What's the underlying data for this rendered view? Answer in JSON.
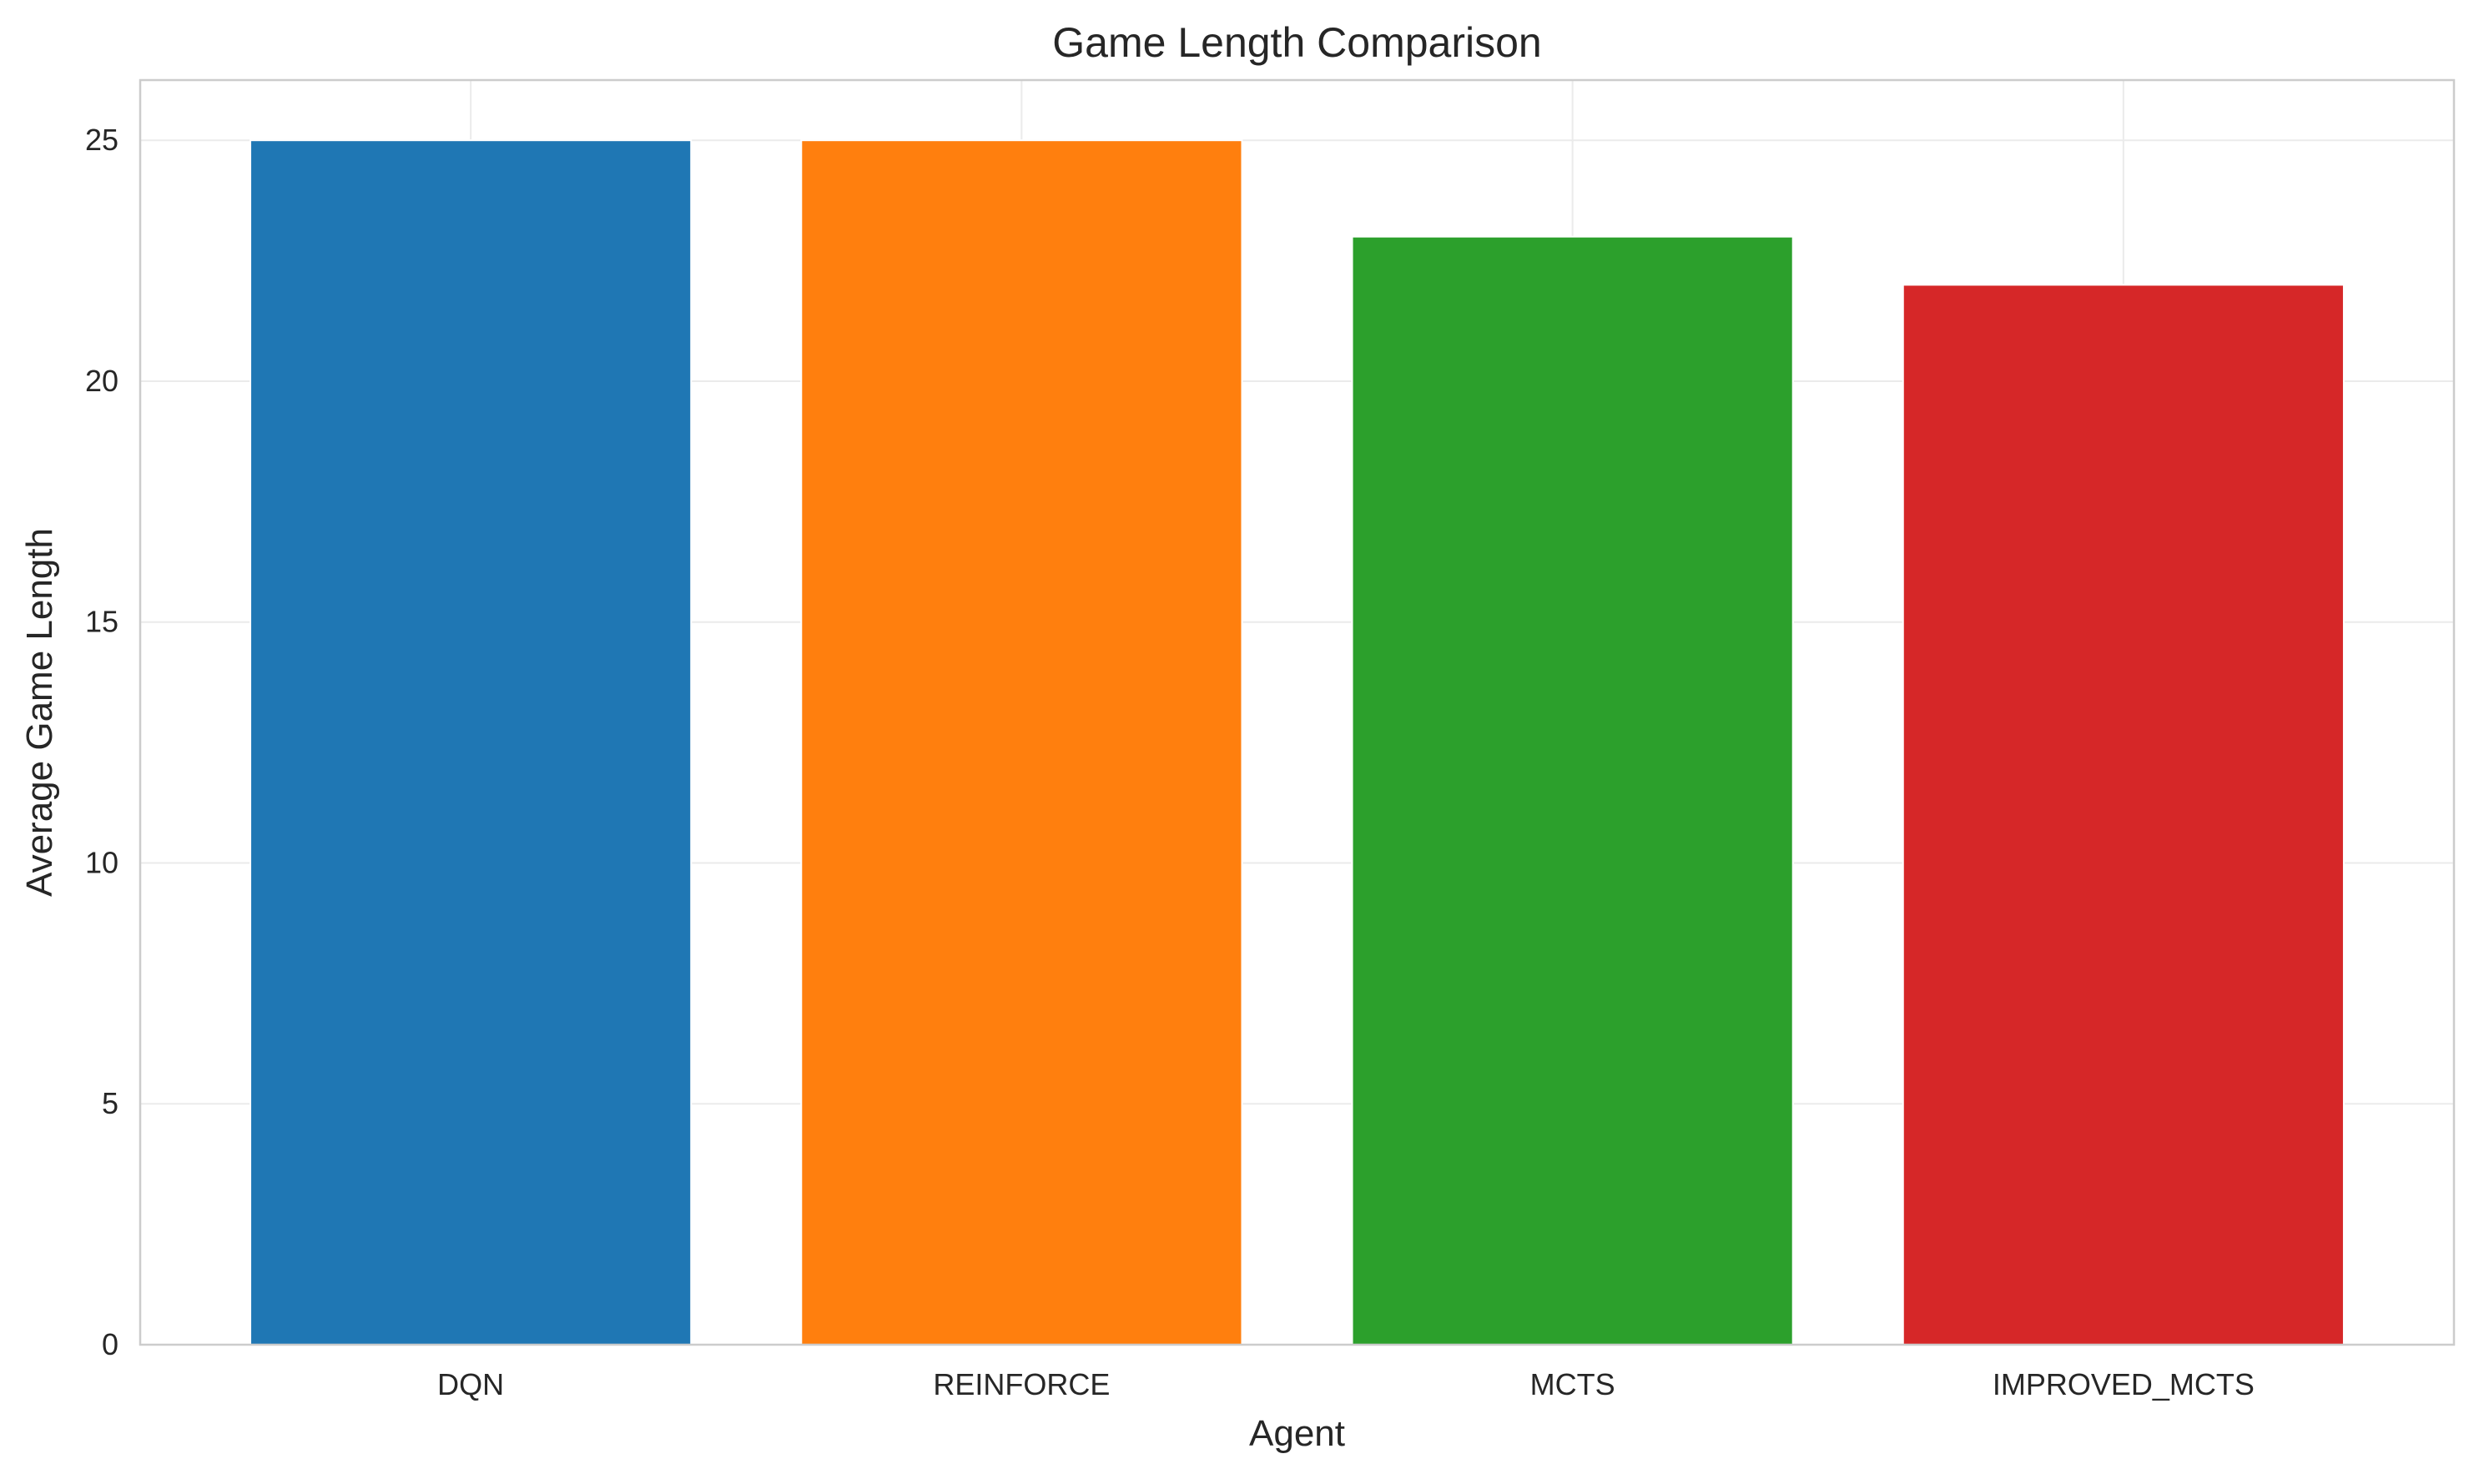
{
  "chart_data": {
    "type": "bar",
    "title": "Game Length Comparison",
    "xlabel": "Agent",
    "ylabel": "Average Game Length",
    "categories": [
      "DQN",
      "REINFORCE",
      "MCTS",
      "IMPROVED_MCTS"
    ],
    "values": [
      25,
      25,
      23,
      22
    ],
    "colors": [
      "#1f77b4",
      "#ff7f0e",
      "#2ca02c",
      "#d62728"
    ],
    "ylim": [
      0,
      26.25
    ],
    "yticks": [
      0,
      5,
      10,
      15,
      20,
      25
    ],
    "grid": true,
    "legend": "none"
  }
}
